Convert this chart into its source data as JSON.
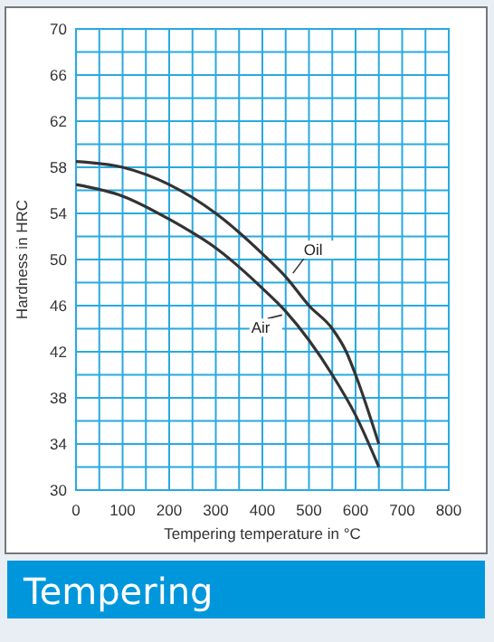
{
  "chart_data": {
    "type": "line",
    "title": "Tempering",
    "xlabel": "Tempering temperature in °C",
    "ylabel": "Hardness in HRC",
    "xlim": [
      0,
      800
    ],
    "ylim": [
      30,
      70
    ],
    "xticks": [
      0,
      {
        "value": 50,
        "label": null
      },
      100,
      {
        "value": 150,
        "label": null
      },
      200,
      {
        "value": 250,
        "label": null
      },
      300,
      {
        "value": 350,
        "label": null
      },
      400,
      {
        "value": 450,
        "label": null
      },
      500,
      {
        "value": 550,
        "label": null
      },
      600,
      {
        "value": 650,
        "label": null
      },
      700,
      {
        "value": 750,
        "label": null
      },
      800
    ],
    "yticks": [
      30,
      {
        "value": 32,
        "label": null
      },
      34,
      {
        "value": 36,
        "label": null
      },
      38,
      {
        "value": 40,
        "label": null
      },
      42,
      {
        "value": 44,
        "label": null
      },
      46,
      {
        "value": 48,
        "label": null
      },
      50,
      {
        "value": 52,
        "label": null
      },
      54,
      {
        "value": 56,
        "label": null
      },
      58,
      {
        "value": 60,
        "label": null
      },
      62,
      {
        "value": 64,
        "label": null
      },
      66,
      {
        "value": 68,
        "label": null
      },
      70
    ],
    "grid": true,
    "series": [
      {
        "name": "Oil",
        "color": "#333333",
        "x": [
          0,
          100,
          200,
          300,
          400,
          450,
          500,
          550,
          580,
          600,
          650
        ],
        "values": [
          58.5,
          58,
          56.5,
          54,
          50.5,
          48.5,
          46,
          44,
          42,
          40,
          34
        ]
      },
      {
        "name": "Air",
        "color": "#333333",
        "x": [
          0,
          100,
          200,
          300,
          400,
          450,
          500,
          550,
          600,
          650
        ],
        "values": [
          56.5,
          55.5,
          53.5,
          51,
          47.5,
          45.5,
          43,
          40,
          36.5,
          32
        ]
      }
    ]
  }
}
